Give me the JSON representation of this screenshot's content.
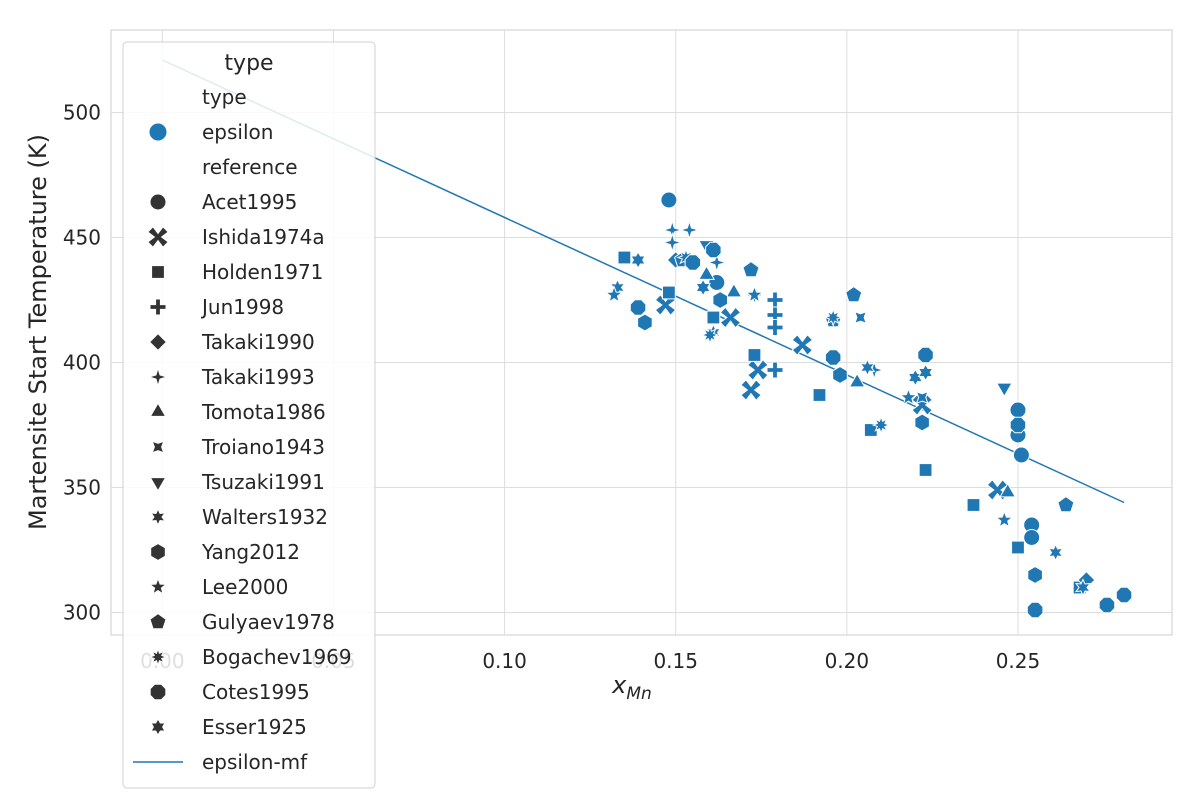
{
  "chart_data": {
    "type": "scatter",
    "title": "",
    "xlabel": "x",
    "xlabel_sub": "Mn",
    "ylabel": "Martensite Start Temperature (K)",
    "xlim": [
      -0.015,
      0.295
    ],
    "ylim": [
      291,
      533
    ],
    "xticks": [
      0.0,
      0.05,
      0.1,
      0.15,
      0.2,
      0.25
    ],
    "xtick_labels": [
      "0.00",
      "0.05",
      "0.10",
      "0.15",
      "0.20",
      "0.25"
    ],
    "yticks": [
      300,
      350,
      400,
      450,
      500
    ],
    "ytick_labels": [
      "300",
      "350",
      "400",
      "450",
      "500"
    ],
    "grid": true,
    "legend_position": "upper-left",
    "legend": {
      "title": "type",
      "hue_header": "type",
      "hue_label": "epsilon",
      "style_header": "reference",
      "line_label": "epsilon-mf"
    },
    "colors": {
      "epsilon": "#1f77b4",
      "marker_legend": "#333333",
      "grid": "#dddddd"
    },
    "series": [
      {
        "name": "Acet1995",
        "marker": "circle",
        "points": [
          [
            0.148,
            465
          ],
          [
            0.162,
            432
          ],
          [
            0.196,
            402
          ],
          [
            0.25,
            381
          ],
          [
            0.25,
            371
          ],
          [
            0.251,
            363
          ],
          [
            0.254,
            335
          ],
          [
            0.254,
            330
          ]
        ]
      },
      {
        "name": "Ishida1974a",
        "marker": "x",
        "points": [
          [
            0.147,
            423
          ],
          [
            0.166,
            418
          ],
          [
            0.172,
            389
          ],
          [
            0.174,
            397
          ],
          [
            0.187,
            407
          ],
          [
            0.222,
            383
          ],
          [
            0.244,
            349
          ]
        ]
      },
      {
        "name": "Holden1971",
        "marker": "square",
        "points": [
          [
            0.135,
            442
          ],
          [
            0.148,
            428
          ],
          [
            0.161,
            418
          ],
          [
            0.173,
            403
          ],
          [
            0.192,
            387
          ],
          [
            0.207,
            373
          ],
          [
            0.223,
            357
          ],
          [
            0.237,
            343
          ],
          [
            0.25,
            326
          ],
          [
            0.268,
            310
          ]
        ]
      },
      {
        "name": "Jun1998",
        "marker": "plus",
        "points": [
          [
            0.179,
            425
          ],
          [
            0.179,
            419
          ],
          [
            0.179,
            414
          ],
          [
            0.179,
            397
          ]
        ]
      },
      {
        "name": "Takaki1990",
        "marker": "diamond",
        "points": [
          [
            0.15,
            441
          ],
          [
            0.27,
            313
          ]
        ]
      },
      {
        "name": "Takaki1993",
        "marker": "star4",
        "points": [
          [
            0.149,
            453
          ],
          [
            0.149,
            448
          ],
          [
            0.154,
            453
          ],
          [
            0.162,
            440
          ],
          [
            0.173,
            427
          ],
          [
            0.208,
            397
          ]
        ]
      },
      {
        "name": "Tomota1986",
        "marker": "triangle-up",
        "points": [
          [
            0.159,
            435
          ],
          [
            0.167,
            428
          ],
          [
            0.203,
            392
          ],
          [
            0.247,
            348
          ]
        ]
      },
      {
        "name": "Troiano1943",
        "marker": "concave-square",
        "points": [
          [
            0.204,
            418
          ],
          [
            0.222,
            386
          ]
        ]
      },
      {
        "name": "Tsuzaki1991",
        "marker": "triangle-down",
        "points": [
          [
            0.159,
            447
          ],
          [
            0.246,
            390
          ]
        ]
      },
      {
        "name": "Walters1932",
        "marker": "star6",
        "points": [
          [
            0.133,
            430
          ],
          [
            0.161,
            412
          ],
          [
            0.206,
            398
          ],
          [
            0.261,
            324
          ],
          [
            0.269,
            310
          ]
        ]
      },
      {
        "name": "Yang2012",
        "marker": "hexagon",
        "points": [
          [
            0.141,
            416
          ],
          [
            0.163,
            425
          ],
          [
            0.198,
            395
          ],
          [
            0.222,
            376
          ],
          [
            0.255,
            315
          ]
        ]
      },
      {
        "name": "Lee2000",
        "marker": "star5",
        "points": [
          [
            0.132,
            427
          ],
          [
            0.173,
            427
          ],
          [
            0.218,
            386
          ],
          [
            0.246,
            337
          ]
        ]
      },
      {
        "name": "Gulyaev1978",
        "marker": "pentagon",
        "points": [
          [
            0.152,
            441
          ],
          [
            0.172,
            437
          ],
          [
            0.196,
            417
          ],
          [
            0.202,
            427
          ],
          [
            0.264,
            343
          ]
        ]
      },
      {
        "name": "Bogachev1969",
        "marker": "star8",
        "points": [
          [
            0.153,
            442
          ],
          [
            0.16,
            411
          ],
          [
            0.196,
            418
          ],
          [
            0.21,
            375
          ]
        ]
      },
      {
        "name": "Cotes1995",
        "marker": "octagon",
        "points": [
          [
            0.139,
            422
          ],
          [
            0.155,
            440
          ],
          [
            0.161,
            445
          ],
          [
            0.196,
            402
          ],
          [
            0.223,
            403
          ],
          [
            0.25,
            375
          ],
          [
            0.276,
            303
          ],
          [
            0.281,
            307
          ],
          [
            0.255,
            301
          ]
        ]
      },
      {
        "name": "Esser1925",
        "marker": "star6b",
        "points": [
          [
            0.139,
            441
          ],
          [
            0.158,
            430
          ],
          [
            0.22,
            394
          ],
          [
            0.223,
            396
          ]
        ]
      }
    ],
    "fit_line": {
      "name": "epsilon-mf",
      "x": [
        0.0,
        0.281
      ],
      "y": [
        521,
        344
      ]
    }
  }
}
